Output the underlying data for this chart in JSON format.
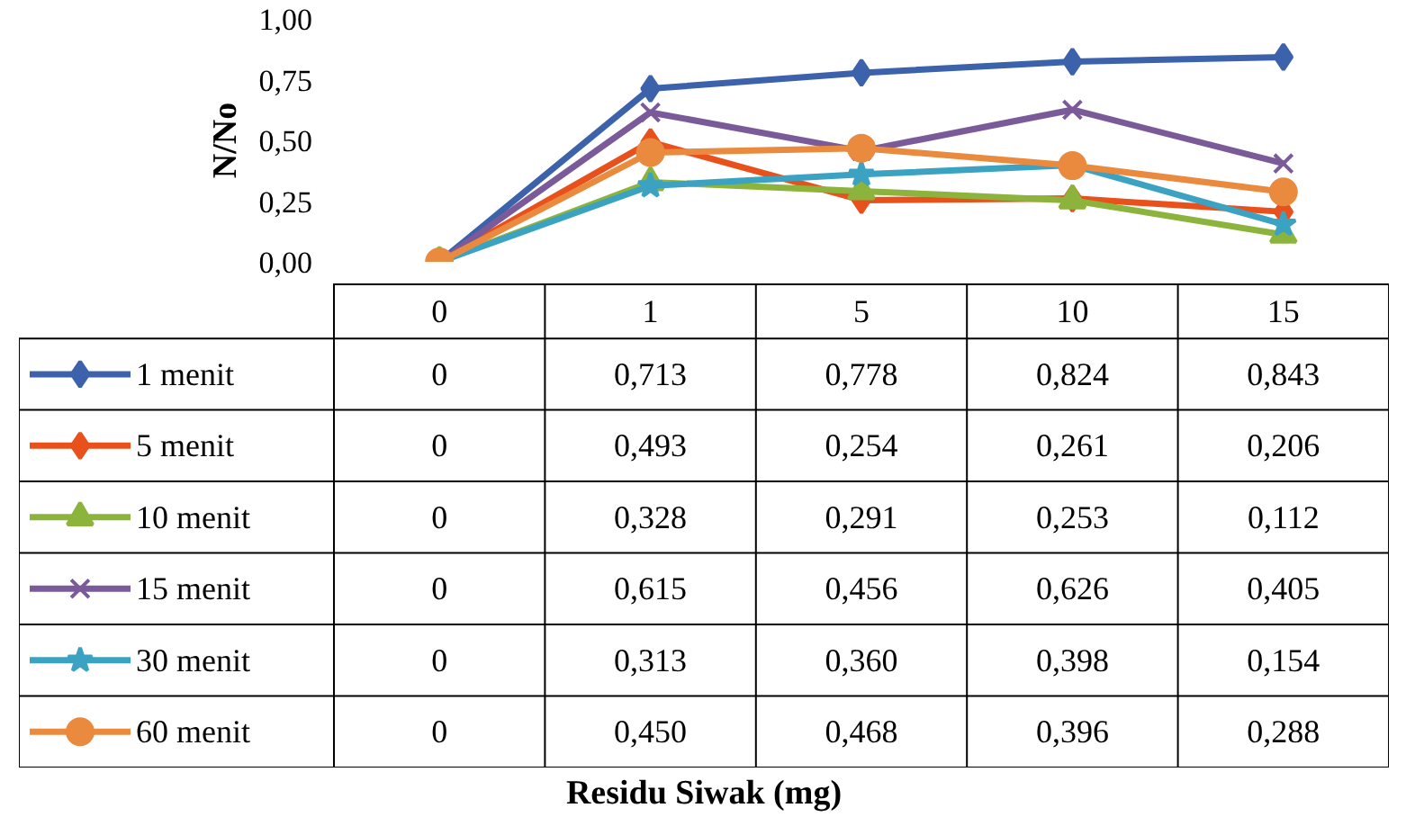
{
  "chart_data": {
    "type": "line",
    "annotations": [
      "Residu Siwak (mg)"
    ],
    "ylabel": "N/No",
    "categories": [
      "0",
      "1",
      "5",
      "10",
      "15"
    ],
    "ylim": [
      0,
      1
    ],
    "yticks": [
      {
        "value": 0,
        "label": "0,00"
      },
      {
        "value": 0.25,
        "label": "0,25"
      },
      {
        "value": 0.5,
        "label": "0,50"
      },
      {
        "value": 0.75,
        "label": "0,75"
      },
      {
        "value": 1,
        "label": "1,00"
      }
    ],
    "grid": false,
    "legend": "bottom",
    "line_style": "solid",
    "series": [
      {
        "name": "1 menit",
        "color": "#3c62ab",
        "marker": "diamond",
        "values": [
          0,
          0.713,
          0.778,
          0.824,
          0.843
        ],
        "value_labels": [
          "0",
          "0,713",
          "0,778",
          "0,824",
          "0,843"
        ]
      },
      {
        "name": "5 menit",
        "color": "#e8501c",
        "marker": "diamond",
        "values": [
          0,
          0.493,
          0.254,
          0.261,
          0.206
        ],
        "value_labels": [
          "0",
          "0,493",
          "0,254",
          "0,261",
          "0,206"
        ]
      },
      {
        "name": "10 menit",
        "color": "#8cb43c",
        "marker": "triangle",
        "values": [
          0,
          0.328,
          0.291,
          0.253,
          0.112
        ],
        "value_labels": [
          "0",
          "0,328",
          "0,291",
          "0,253",
          "0,112"
        ]
      },
      {
        "name": "15 menit",
        "color": "#7a5a98",
        "marker": "cross",
        "values": [
          0,
          0.615,
          0.456,
          0.626,
          0.405
        ],
        "value_labels": [
          "0",
          "0,615",
          "0,456",
          "0,626",
          "0,405"
        ]
      },
      {
        "name": "30 menit",
        "color": "#3ca2c2",
        "marker": "star",
        "values": [
          0,
          0.313,
          0.36,
          0.398,
          0.154
        ],
        "value_labels": [
          "0",
          "0,313",
          "0,360",
          "0,398",
          "0,154"
        ]
      },
      {
        "name": "60 menit",
        "color": "#ea8a3e",
        "marker": "circle",
        "values": [
          0,
          0.45,
          0.468,
          0.396,
          0.288
        ],
        "value_labels": [
          "0",
          "0,450",
          "0,468",
          "0,396",
          "0,288"
        ]
      }
    ]
  }
}
